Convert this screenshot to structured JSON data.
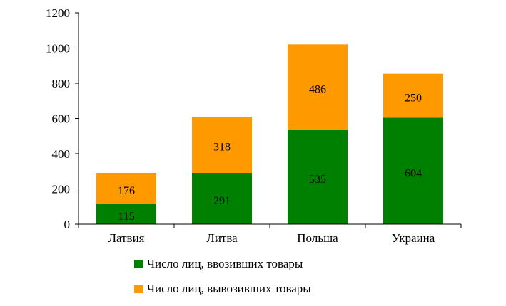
{
  "chart_data": {
    "type": "bar",
    "stacked": true,
    "categories": [
      "Латвия",
      "Литва",
      "Польша",
      "Украина"
    ],
    "series": [
      {
        "name": "Число лиц, ввозивших товары",
        "values": [
          115,
          291,
          535,
          604
        ],
        "color": "#008000"
      },
      {
        "name": "Число лиц, вывозивших товары",
        "values": [
          176,
          318,
          486,
          250
        ],
        "color": "#FF9900"
      }
    ],
    "ylim": [
      0,
      1200
    ],
    "yticks": [
      "0",
      "200",
      "400",
      "600",
      "800",
      "1000",
      "1200"
    ],
    "grid": false,
    "legend_position": "bottom"
  }
}
